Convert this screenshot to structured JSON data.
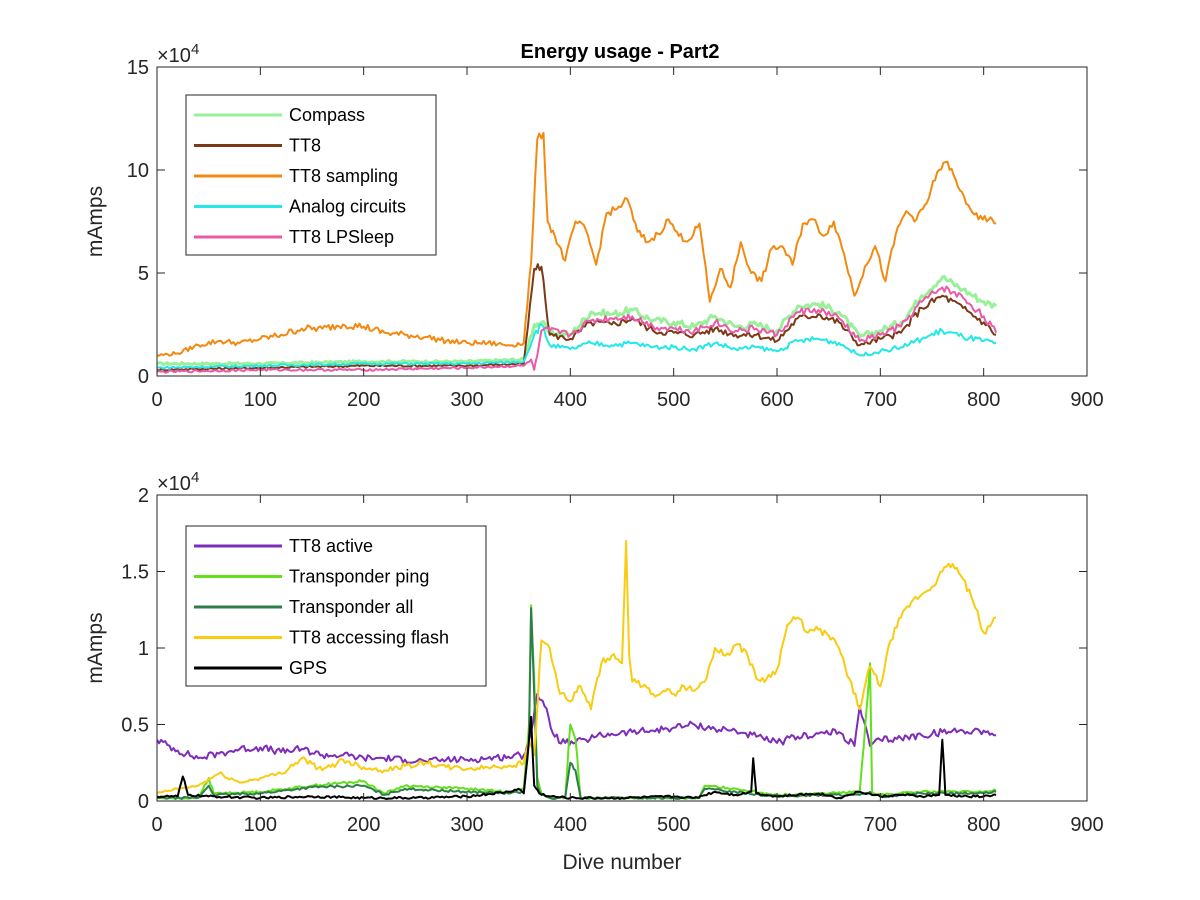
{
  "chart_data": [
    {
      "type": "line",
      "title": "Energy usage - Part2",
      "xlabel": "",
      "ylabel": "mAmps",
      "y_multiplier": "×10",
      "y_multiplier_exp": "4",
      "xlim": [
        0,
        900
      ],
      "ylim": [
        0,
        15
      ],
      "xticks": [
        "0",
        "100",
        "200",
        "300",
        "400",
        "500",
        "600",
        "700",
        "800",
        "900"
      ],
      "yticks": [
        "0",
        "5",
        "10",
        "15"
      ],
      "legend_position": "top-left",
      "series": [
        {
          "name": "Compass",
          "color": "#9af09a",
          "width": 3,
          "x": [
            0,
            100,
            200,
            300,
            355,
            365,
            372,
            380,
            400,
            420,
            440,
            460,
            480,
            500,
            520,
            540,
            560,
            580,
            600,
            620,
            640,
            660,
            680,
            700,
            720,
            740,
            760,
            780,
            800,
            812
          ],
          "y": [
            0.6,
            0.6,
            0.7,
            0.7,
            0.8,
            2.5,
            2.6,
            2.1,
            2.0,
            3.1,
            3.0,
            3.2,
            2.7,
            2.6,
            2.4,
            2.9,
            2.4,
            2.5,
            2.2,
            3.4,
            3.5,
            3.1,
            1.9,
            2.2,
            2.6,
            3.9,
            4.8,
            4.2,
            3.6,
            3.4
          ]
        },
        {
          "name": "TT8",
          "color": "#7b3a16",
          "width": 2,
          "x": [
            0,
            100,
            200,
            300,
            355,
            365,
            372,
            380,
            400,
            420,
            440,
            460,
            480,
            500,
            520,
            540,
            560,
            580,
            600,
            620,
            640,
            660,
            680,
            700,
            720,
            740,
            760,
            780,
            800,
            812
          ],
          "y": [
            0.3,
            0.4,
            0.5,
            0.5,
            0.6,
            5.2,
            5.3,
            2.0,
            1.8,
            2.6,
            2.5,
            2.8,
            2.2,
            2.1,
            2.0,
            2.3,
            2.0,
            2.0,
            1.7,
            2.8,
            3.0,
            2.6,
            1.5,
            1.8,
            2.1,
            3.3,
            3.9,
            3.3,
            2.6,
            2.0
          ]
        },
        {
          "name": "TT8 sampling",
          "color": "#f28a12",
          "width": 2,
          "x": [
            0,
            20,
            40,
            60,
            80,
            100,
            120,
            140,
            160,
            180,
            200,
            220,
            240,
            260,
            280,
            300,
            320,
            340,
            355,
            362,
            368,
            374,
            378,
            385,
            395,
            405,
            415,
            425,
            435,
            445,
            455,
            465,
            475,
            485,
            495,
            505,
            515,
            525,
            535,
            545,
            555,
            565,
            575,
            585,
            595,
            605,
            615,
            625,
            635,
            645,
            655,
            665,
            675,
            685,
            695,
            705,
            715,
            725,
            735,
            745,
            755,
            765,
            775,
            785,
            795,
            805,
            812
          ],
          "y": [
            1.0,
            1.1,
            1.5,
            1.7,
            1.6,
            1.8,
            2.0,
            2.3,
            2.3,
            2.5,
            2.4,
            2.1,
            2.0,
            1.9,
            1.7,
            1.6,
            1.6,
            1.5,
            1.6,
            5.5,
            11.5,
            11.8,
            7.5,
            6.8,
            5.6,
            7.5,
            7.1,
            5.4,
            7.9,
            8.1,
            8.6,
            7.0,
            6.5,
            6.9,
            7.6,
            6.8,
            6.6,
            7.4,
            3.6,
            5.2,
            4.3,
            6.5,
            5.0,
            4.6,
            6.2,
            6.3,
            5.4,
            7.4,
            7.6,
            6.8,
            7.5,
            5.9,
            3.9,
            5.3,
            6.3,
            4.6,
            6.9,
            8.0,
            7.6,
            8.4,
            9.9,
            10.4,
            9.2,
            8.3,
            7.6,
            7.6,
            7.4
          ]
        },
        {
          "name": "Analog circuits",
          "color": "#22e8e8",
          "width": 2,
          "x": [
            0,
            100,
            200,
            300,
            355,
            365,
            372,
            380,
            400,
            420,
            440,
            460,
            480,
            500,
            520,
            540,
            560,
            580,
            600,
            620,
            640,
            660,
            680,
            700,
            720,
            740,
            760,
            780,
            800,
            812
          ],
          "y": [
            0.4,
            0.5,
            0.6,
            0.6,
            0.7,
            2.0,
            2.5,
            1.5,
            1.3,
            1.6,
            1.5,
            1.6,
            1.4,
            1.4,
            1.3,
            1.6,
            1.3,
            1.4,
            1.2,
            1.7,
            1.8,
            1.6,
            1.0,
            1.2,
            1.4,
            1.8,
            2.2,
            1.9,
            1.7,
            1.6
          ]
        },
        {
          "name": "TT8 LPSleep",
          "color": "#ea5aa8",
          "width": 2,
          "x": [
            0,
            100,
            200,
            300,
            355,
            362,
            365,
            368,
            372,
            380,
            400,
            420,
            440,
            460,
            480,
            500,
            520,
            540,
            560,
            580,
            600,
            620,
            640,
            660,
            680,
            700,
            720,
            740,
            760,
            780,
            800,
            812
          ],
          "y": [
            0.2,
            0.3,
            0.3,
            0.4,
            0.5,
            0.8,
            0.3,
            1.0,
            2.2,
            2.2,
            2.0,
            2.7,
            2.8,
            2.9,
            2.4,
            2.3,
            2.2,
            2.6,
            2.2,
            2.3,
            2.0,
            3.1,
            3.2,
            2.8,
            1.7,
            2.0,
            2.4,
            3.6,
            4.3,
            3.8,
            2.9,
            2.1
          ]
        }
      ]
    },
    {
      "type": "line",
      "title": "",
      "xlabel": "Dive number",
      "ylabel": "mAmps",
      "y_multiplier": "×10",
      "y_multiplier_exp": "4",
      "xlim": [
        0,
        900
      ],
      "ylim": [
        0,
        2
      ],
      "xticks": [
        "0",
        "100",
        "200",
        "300",
        "400",
        "500",
        "600",
        "700",
        "800",
        "900"
      ],
      "yticks": [
        "0",
        "0.5",
        "1",
        "1.5",
        "2"
      ],
      "legend_position": "top-left",
      "series": [
        {
          "name": "TT8 active",
          "color": "#7e2db8",
          "width": 2,
          "x": [
            0,
            20,
            40,
            60,
            80,
            100,
            120,
            140,
            160,
            180,
            200,
            220,
            240,
            260,
            280,
            300,
            320,
            340,
            355,
            362,
            368,
            375,
            385,
            395,
            405,
            415,
            425,
            440,
            460,
            480,
            500,
            520,
            540,
            560,
            580,
            600,
            620,
            640,
            660,
            675,
            680,
            690,
            700,
            720,
            740,
            760,
            780,
            800,
            812
          ],
          "y": [
            0.4,
            0.33,
            0.28,
            0.31,
            0.34,
            0.35,
            0.32,
            0.34,
            0.3,
            0.3,
            0.28,
            0.28,
            0.27,
            0.26,
            0.27,
            0.27,
            0.28,
            0.29,
            0.3,
            0.45,
            0.7,
            0.62,
            0.42,
            0.38,
            0.38,
            0.4,
            0.42,
            0.44,
            0.45,
            0.46,
            0.48,
            0.5,
            0.47,
            0.46,
            0.42,
            0.38,
            0.42,
            0.44,
            0.45,
            0.36,
            0.62,
            0.36,
            0.4,
            0.41,
            0.43,
            0.45,
            0.46,
            0.46,
            0.43
          ]
        },
        {
          "name": "Transponder ping",
          "color": "#62e01c",
          "width": 2,
          "x": [
            0,
            40,
            50,
            55,
            100,
            150,
            200,
            220,
            240,
            300,
            340,
            355,
            360,
            362,
            365,
            368,
            372,
            380,
            395,
            400,
            405,
            410,
            420,
            440,
            500,
            525,
            530,
            560,
            600,
            650,
            680,
            688,
            690,
            692,
            700,
            740,
            800,
            812
          ],
          "y": [
            0.02,
            0.02,
            0.15,
            0.05,
            0.06,
            0.1,
            0.13,
            0.05,
            0.1,
            0.08,
            0.06,
            0.08,
            0.5,
            1.28,
            0.8,
            0.15,
            0.05,
            0.02,
            0.02,
            0.5,
            0.4,
            0.02,
            0.02,
            0.02,
            0.02,
            0.02,
            0.1,
            0.08,
            0.04,
            0.05,
            0.06,
            0.7,
            0.9,
            0.05,
            0.04,
            0.06,
            0.06,
            0.07
          ]
        },
        {
          "name": "Transponder all",
          "color": "#2e7d4a",
          "width": 2,
          "x": [
            0,
            40,
            50,
            55,
            100,
            150,
            200,
            220,
            240,
            300,
            340,
            355,
            360,
            362,
            365,
            368,
            372,
            380,
            395,
            400,
            405,
            410,
            420,
            440,
            500,
            525,
            530,
            560,
            600,
            650,
            680,
            688,
            690,
            692,
            700,
            740,
            800,
            812
          ],
          "y": [
            0.02,
            0.02,
            0.1,
            0.04,
            0.05,
            0.09,
            0.1,
            0.04,
            0.08,
            0.06,
            0.05,
            0.06,
            0.4,
            1.26,
            0.7,
            0.1,
            0.04,
            0.02,
            0.02,
            0.25,
            0.2,
            0.02,
            0.02,
            0.02,
            0.02,
            0.02,
            0.08,
            0.06,
            0.03,
            0.04,
            0.04,
            0.05,
            0.06,
            0.04,
            0.03,
            0.05,
            0.05,
            0.06
          ]
        },
        {
          "name": "TT8 accessing flash",
          "color": "#f8cc10",
          "width": 2,
          "x": [
            0,
            20,
            40,
            60,
            80,
            100,
            120,
            140,
            160,
            180,
            200,
            220,
            240,
            260,
            280,
            300,
            320,
            340,
            355,
            360,
            365,
            372,
            380,
            390,
            400,
            410,
            420,
            430,
            440,
            450,
            454,
            457,
            460,
            470,
            480,
            490,
            500,
            510,
            520,
            530,
            540,
            550,
            560,
            570,
            580,
            590,
            600,
            610,
            620,
            630,
            640,
            650,
            660,
            670,
            680,
            690,
            700,
            710,
            720,
            730,
            740,
            750,
            760,
            770,
            780,
            790,
            800,
            812
          ],
          "y": [
            0.05,
            0.08,
            0.1,
            0.18,
            0.12,
            0.15,
            0.18,
            0.28,
            0.2,
            0.27,
            0.22,
            0.2,
            0.23,
            0.25,
            0.22,
            0.21,
            0.22,
            0.23,
            0.25,
            0.4,
            0.3,
            1.05,
            1.0,
            0.7,
            0.65,
            0.75,
            0.6,
            0.9,
            0.95,
            0.9,
            1.7,
            0.95,
            0.78,
            0.75,
            0.7,
            0.72,
            0.7,
            0.75,
            0.72,
            0.78,
            1.0,
            0.95,
            1.02,
            0.98,
            0.8,
            0.8,
            0.86,
            1.15,
            1.2,
            1.1,
            1.12,
            1.08,
            1.0,
            0.8,
            0.6,
            0.88,
            0.75,
            1.05,
            1.2,
            1.3,
            1.35,
            1.4,
            1.5,
            1.55,
            1.45,
            1.3,
            1.1,
            1.2
          ]
        },
        {
          "name": "GPS",
          "color": "#000000",
          "width": 2,
          "x": [
            0,
            20,
            25,
            30,
            50,
            100,
            150,
            200,
            250,
            300,
            340,
            350,
            355,
            360,
            362,
            365,
            370,
            380,
            400,
            450,
            500,
            520,
            540,
            560,
            575,
            577,
            580,
            600,
            620,
            640,
            660,
            680,
            700,
            720,
            740,
            757,
            760,
            763,
            780,
            800,
            812
          ],
          "y": [
            0.03,
            0.03,
            0.16,
            0.04,
            0.03,
            0.02,
            0.03,
            0.02,
            0.02,
            0.03,
            0.06,
            0.08,
            0.05,
            0.4,
            0.55,
            0.1,
            0.05,
            0.03,
            0.02,
            0.02,
            0.03,
            0.02,
            0.06,
            0.04,
            0.06,
            0.28,
            0.05,
            0.03,
            0.04,
            0.05,
            0.02,
            0.06,
            0.03,
            0.04,
            0.03,
            0.04,
            0.4,
            0.04,
            0.03,
            0.03,
            0.04
          ]
        }
      ]
    }
  ]
}
